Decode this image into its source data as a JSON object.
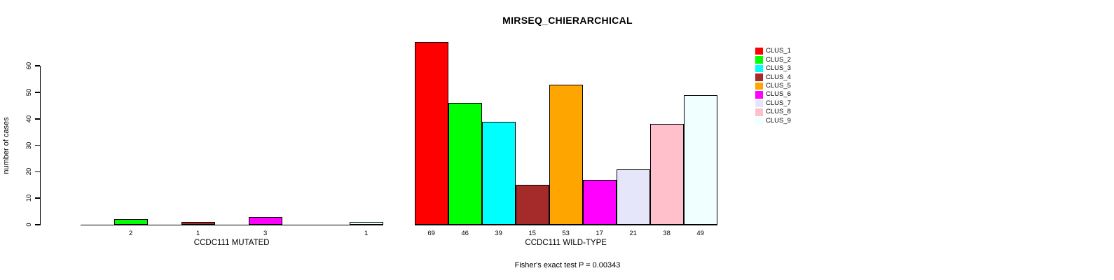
{
  "chart_data": {
    "type": "bar",
    "title": "MIRSEQ_CHIERARCHICAL",
    "ylabel": "number of cases",
    "xlabel": "",
    "ylim": [
      0,
      60
    ],
    "yticks": [
      0,
      10,
      20,
      30,
      40,
      50,
      60
    ],
    "grid": false,
    "legend": {
      "position": "top-right",
      "items": [
        {
          "label": "CLUS_1",
          "color": "#FF0000"
        },
        {
          "label": "CLUS_2",
          "color": "#00FF00"
        },
        {
          "label": "CLUS_3",
          "color": "#00FFFF"
        },
        {
          "label": "CLUS_4",
          "color": "#A52A2A"
        },
        {
          "label": "CLUS_5",
          "color": "#FFA500"
        },
        {
          "label": "CLUS_6",
          "color": "#FF00FF"
        },
        {
          "label": "CLUS_7",
          "color": "#E6E6FA"
        },
        {
          "label": "CLUS_8",
          "color": "#FFC0CB"
        },
        {
          "label": "CLUS_9",
          "color": "#F0FFFF"
        }
      ]
    },
    "groups": [
      {
        "label": "CCDC111 MUTATED",
        "values": [
          0,
          2,
          0,
          1,
          0,
          3,
          0,
          0,
          1
        ],
        "bar_labels": [
          "",
          "2",
          "",
          "1",
          "",
          "3",
          "",
          "",
          "1"
        ]
      },
      {
        "label": "CCDC111 WILD-TYPE",
        "values": [
          69,
          46,
          39,
          15,
          53,
          17,
          21,
          38,
          49
        ],
        "bar_labels": [
          "69",
          "46",
          "39",
          "15",
          "53",
          "17",
          "21",
          "38",
          "49"
        ]
      }
    ],
    "footer": "Fisher's exact test P = 0.00343"
  }
}
